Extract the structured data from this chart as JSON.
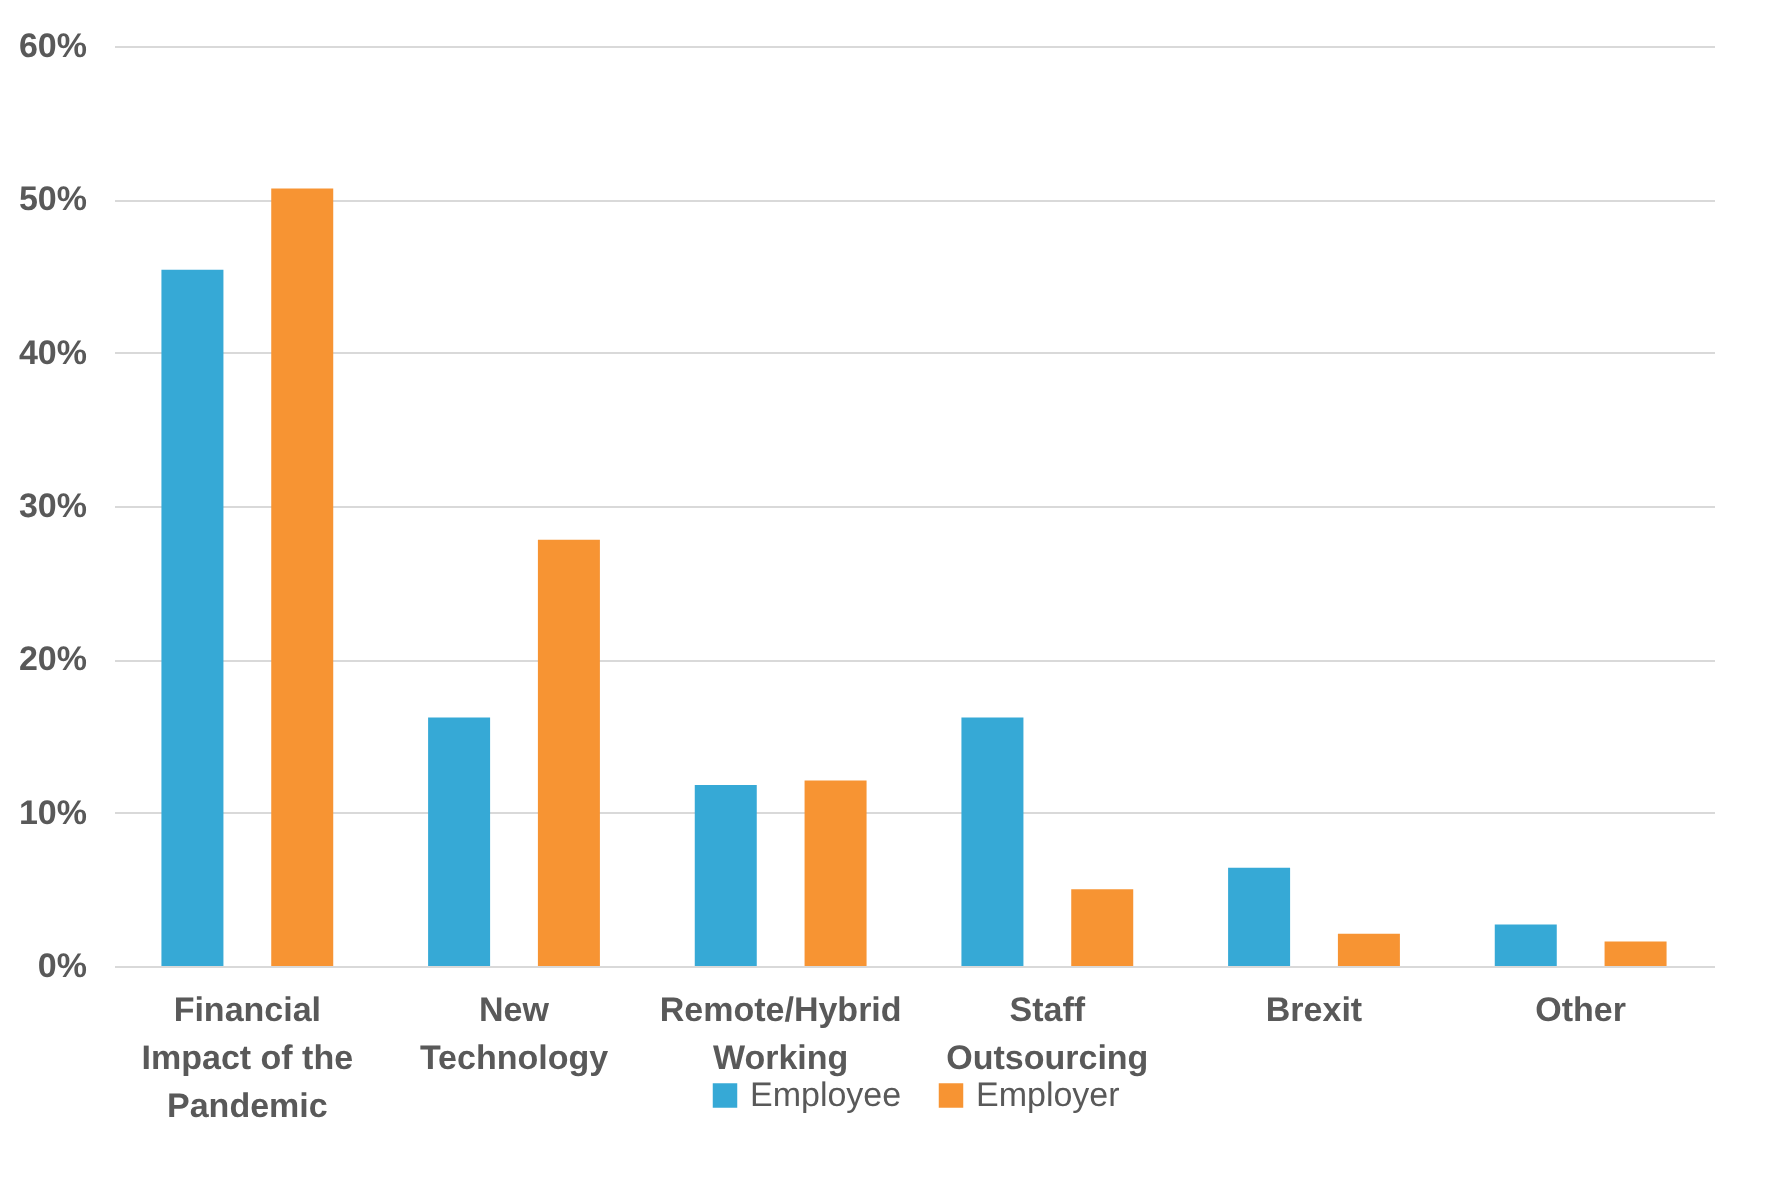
{
  "chart_data": {
    "type": "bar",
    "categories": [
      "Financial Impact of the Pandemic",
      "New Technology",
      "Remote/Hybrid Working",
      "Staff Outsourcing",
      "Brexit",
      "Other"
    ],
    "series": [
      {
        "name": "Employee",
        "color": "#36a9d6",
        "values": [
          45.4,
          16.2,
          11.8,
          16.2,
          6.4,
          2.7
        ]
      },
      {
        "name": "Employer",
        "color": "#f79433",
        "values": [
          50.7,
          27.8,
          12.1,
          5.0,
          2.1,
          1.6
        ]
      }
    ],
    "ylim": [
      0,
      60
    ],
    "yticks": [
      {
        "value": 0,
        "label": "0%"
      },
      {
        "value": 10,
        "label": "10%"
      },
      {
        "value": 20,
        "label": "20%"
      },
      {
        "value": 30,
        "label": "30%"
      },
      {
        "value": 40,
        "label": "40%"
      },
      {
        "value": 50,
        "label": "50%"
      },
      {
        "value": 60,
        "label": "60%"
      }
    ],
    "grid": "y",
    "legend": "bottom"
  }
}
